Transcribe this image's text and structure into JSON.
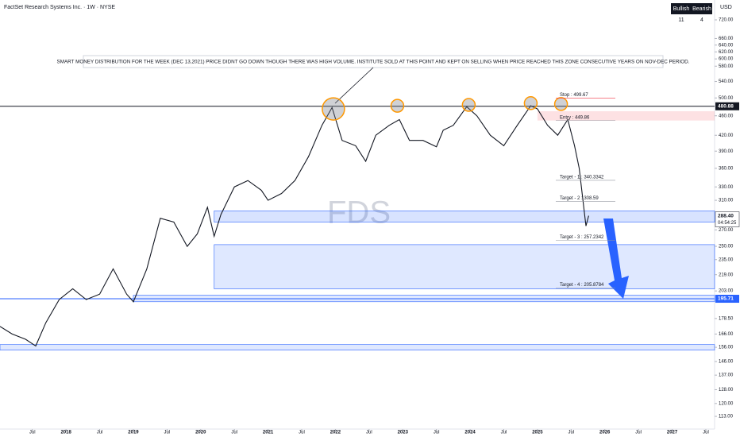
{
  "chart_data": {
    "type": "line",
    "title": "FactSet Research Systems Inc. · 1W · NYSE",
    "watermark": "FDS",
    "currency": "USD",
    "log_scale": true,
    "grid": false,
    "xlim": [
      2017.02,
      2027.63
    ],
    "ylim": [
      106.5,
      790
    ],
    "xticks": [
      {
        "value": 2017.5,
        "label": "Jul"
      },
      2018,
      {
        "value": 2018.5,
        "label": "Jul"
      },
      2019,
      {
        "value": 2019.5,
        "label": "Jul"
      },
      2020,
      {
        "value": 2020.5,
        "label": "Jul"
      },
      2021,
      {
        "value": 2021.5,
        "label": "Jul"
      },
      2022,
      {
        "value": 2022.5,
        "label": "Jul"
      },
      2023,
      {
        "value": 2023.5,
        "label": "Jul"
      },
      2024,
      {
        "value": 2024.5,
        "label": "Jul"
      },
      2025,
      {
        "value": 2025.5,
        "label": "Jul"
      },
      2026,
      {
        "value": 2026.5,
        "label": "Jul"
      },
      2027,
      {
        "value": 2027.5,
        "label": "Jul"
      }
    ],
    "yticks": [
      {
        "value": 720,
        "label": "720.00"
      },
      {
        "value": 660,
        "label": "660.00"
      },
      {
        "value": 640,
        "label": "640.00"
      },
      {
        "value": 620,
        "label": "620.00"
      },
      {
        "value": 600,
        "label": "600.00"
      },
      {
        "value": 580,
        "label": "580.00"
      },
      {
        "value": 540,
        "label": "540.00"
      },
      {
        "value": 500,
        "label": "500.00"
      },
      {
        "value": 460,
        "label": "460.00"
      },
      {
        "value": 420,
        "label": "420.00"
      },
      {
        "value": 390,
        "label": "390.00"
      },
      {
        "value": 360,
        "label": "360.00"
      },
      {
        "value": 330,
        "label": "330.00"
      },
      {
        "value": 310,
        "label": "310.00"
      },
      {
        "value": 270,
        "label": "270.00"
      },
      {
        "value": 250,
        "label": "250.00"
      },
      {
        "value": 235,
        "label": "235.00"
      },
      {
        "value": 219,
        "label": "219.00"
      },
      {
        "value": 203,
        "label": "203.00"
      },
      {
        "value": 178.5,
        "label": "178.50"
      },
      {
        "value": 166,
        "label": "166.00"
      },
      {
        "value": 156,
        "label": "156.00"
      },
      {
        "value": 146,
        "label": "146.00"
      },
      {
        "value": 137,
        "label": "137.00"
      },
      {
        "value": 128,
        "label": "128.00"
      },
      {
        "value": 120,
        "label": "120.00"
      },
      {
        "value": 113,
        "label": "113.00"
      }
    ],
    "series": [
      {
        "name": "FDS",
        "color": "#131722",
        "x": [
          2017.02,
          2017.2,
          2017.4,
          2017.55,
          2017.7,
          2017.9,
          2018.1,
          2018.3,
          2018.5,
          2018.7,
          2018.9,
          2019.0,
          2019.2,
          2019.4,
          2019.6,
          2019.8,
          2019.95,
          2020.1,
          2020.2,
          2020.3,
          2020.5,
          2020.7,
          2020.9,
          2021.0,
          2021.2,
          2021.4,
          2021.6,
          2021.8,
          2021.95,
          2022.1,
          2022.3,
          2022.45,
          2022.6,
          2022.8,
          2022.95,
          2023.1,
          2023.3,
          2023.5,
          2023.6,
          2023.75,
          2023.95,
          2024.1,
          2024.3,
          2024.5,
          2024.7,
          2024.9,
          2025.0,
          2025.15,
          2025.3,
          2025.45,
          2025.55,
          2025.62,
          2025.7,
          2025.72,
          2025.76
        ],
        "values": [
          172,
          166,
          162,
          157,
          175,
          195,
          205,
          195,
          200,
          225,
          200,
          193,
          225,
          285,
          280,
          250,
          265,
          300,
          262,
          290,
          330,
          340,
          325,
          310,
          320,
          340,
          380,
          440,
          478,
          410,
          400,
          372,
          420,
          440,
          452,
          410,
          410,
          398,
          430,
          440,
          480,
          460,
          420,
          400,
          440,
          482,
          475,
          440,
          420,
          452,
          400,
          360,
          290,
          275,
          288.4
        ]
      }
    ],
    "zones": [
      {
        "low": 280,
        "high": 295,
        "x0": 2020.2,
        "color": "rgba(41,98,255,0.18)"
      },
      {
        "low": 205,
        "high": 252,
        "x0": 2020.2,
        "color": "rgba(41,98,255,0.15)"
      },
      {
        "low": 193,
        "high": 199,
        "x0": 2019.0,
        "color": "rgba(41,98,255,0.15)"
      },
      {
        "low": 154,
        "high": 158,
        "x0": 2017.02,
        "color": "rgba(41,98,255,0.15)"
      },
      {
        "low": 450,
        "high": 470,
        "x0": 2025.0,
        "color": "rgba(242,54,69,0.15)"
      }
    ],
    "highlights": [
      {
        "x": 2021.97,
        "y": 475
      },
      {
        "x": 2022.92,
        "y": 482
      },
      {
        "x": 2023.98,
        "y": 484
      },
      {
        "x": 2024.9,
        "y": 488
      },
      {
        "x": 2025.35,
        "y": 486
      }
    ],
    "annotations": [
      {
        "text": "Stop : 499.67",
        "value": 499.67,
        "color": "#131722"
      },
      {
        "text": "Entry : 449.86",
        "value": 449.86,
        "color": "#131722"
      },
      {
        "text": "Target - 1 : 340.3342",
        "value": 340.3342,
        "color": "#131722"
      },
      {
        "text": "Target - 2 : 308.59",
        "value": 308.59,
        "color": "#131722"
      },
      {
        "text": "Target - 3 : 257.2342",
        "value": 257.2342,
        "color": "#131722"
      },
      {
        "text": "Target - 4 : 205.8784",
        "value": 205.8784,
        "color": "#131722"
      }
    ],
    "note": "SMART MONEY DISTRIBUTION FOR THE WEEK (DEC 13,2021) PRICE DIDNT GO DOWN THOUGH THERE WAS HIGH VOLUME. INSTITUTE SOLD AT THIS POINT AND KEPT ON SELLING WHEN PRICE REACHED THIS ZONE CONSECUTIVE YEARS ON NOV-DEC PERIOD.",
    "price_labels": [
      {
        "value": 480.88,
        "label": "480.88",
        "bg": "#131722",
        "fg": "#ffffff",
        "line": true
      },
      {
        "value": 288.4,
        "label": "288.40",
        "bg": "#ffffff",
        "fg": "#131722",
        "line": false,
        "countdown": "04:54:25"
      },
      {
        "value": 195.71,
        "label": "195.71",
        "bg": "#2962ff",
        "fg": "#ffffff",
        "line": true
      }
    ],
    "sentiment": {
      "headers": [
        "Bullish",
        "Bearish"
      ],
      "counts": [
        11,
        4
      ]
    }
  }
}
